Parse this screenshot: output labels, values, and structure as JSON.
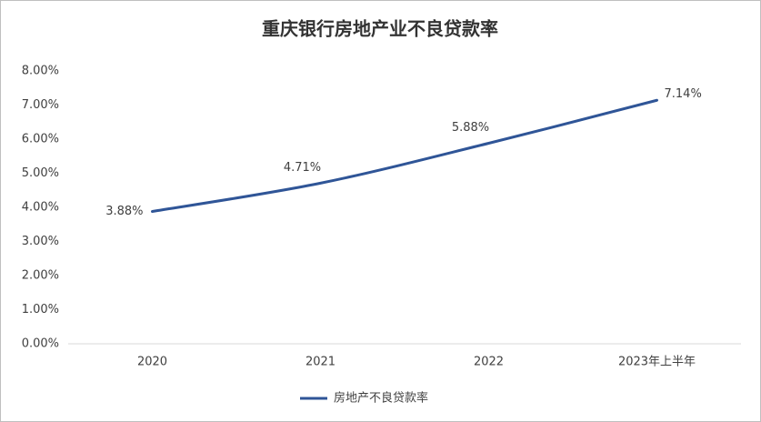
{
  "chart_data": {
    "type": "line",
    "title": "重庆银行房地产业不良贷款率",
    "categories": [
      "2020",
      "2021",
      "2022",
      "2023年上半年"
    ],
    "series": [
      {
        "name": "房地产不良贷款率",
        "color": "#2f5597",
        "values": [
          3.88,
          4.71,
          5.88,
          7.14
        ],
        "value_labels": [
          "3.88%",
          "4.71%",
          "5.88%",
          "7.14%"
        ]
      }
    ],
    "ylim": [
      0,
      8
    ],
    "yticks": [
      {
        "value": 0,
        "label": "0.00%"
      },
      {
        "value": 1,
        "label": "1.00%"
      },
      {
        "value": 2,
        "label": "2.00%"
      },
      {
        "value": 3,
        "label": "3.00%"
      },
      {
        "value": 4,
        "label": "4.00%"
      },
      {
        "value": 5,
        "label": "5.00%"
      },
      {
        "value": 6,
        "label": "6.00%"
      },
      {
        "value": 7,
        "label": "7.00%"
      },
      {
        "value": 8,
        "label": "8.00%"
      }
    ],
    "grid": false,
    "legend": "bottom"
  }
}
